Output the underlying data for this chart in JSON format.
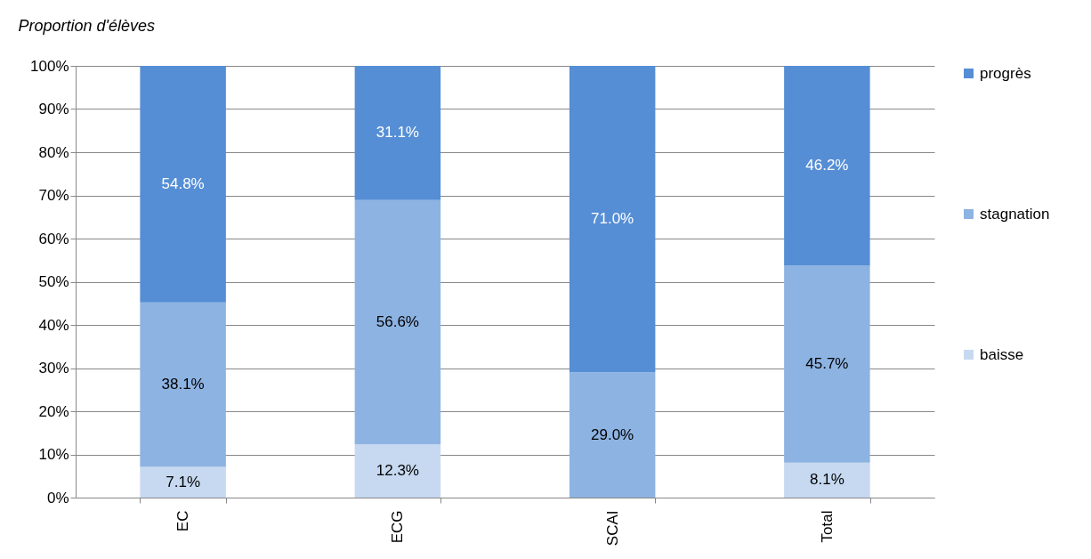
{
  "chart_data": {
    "type": "bar",
    "stacked": true,
    "ylabel": "Proportion d'élèves",
    "categories": [
      "EC",
      "ECG",
      "SCAI",
      "Total"
    ],
    "series": [
      {
        "name": "baisse",
        "color": "#c6d9f1",
        "values": [
          7.1,
          12.3,
          null,
          8.1
        ],
        "value_labels": [
          "7.1%",
          "12.3%",
          null,
          "8.1%"
        ]
      },
      {
        "name": "stagnation",
        "color": "#8db3e2",
        "values": [
          38.1,
          56.6,
          29.0,
          45.7
        ],
        "value_labels": [
          "38.1%",
          "56.6%",
          "29.0%",
          "45.7%"
        ]
      },
      {
        "name": "progrès",
        "color": "#558ed5",
        "values": [
          54.8,
          31.1,
          71.0,
          46.2
        ],
        "value_labels": [
          "54.8%",
          "31.1%",
          "71.0%",
          "46.2%"
        ]
      }
    ],
    "ylim": [
      0,
      100
    ],
    "yticks": [
      {
        "value": 0,
        "label": "0%"
      },
      {
        "value": 10,
        "label": "10%"
      },
      {
        "value": 20,
        "label": "20%"
      },
      {
        "value": 30,
        "label": "30%"
      },
      {
        "value": 40,
        "label": "40%"
      },
      {
        "value": 50,
        "label": "50%"
      },
      {
        "value": 60,
        "label": "60%"
      },
      {
        "value": 70,
        "label": "70%"
      },
      {
        "value": 80,
        "label": "80%"
      },
      {
        "value": 90,
        "label": "90%"
      },
      {
        "value": 100,
        "label": "100%"
      }
    ],
    "grid": "y",
    "legend": "right"
  }
}
